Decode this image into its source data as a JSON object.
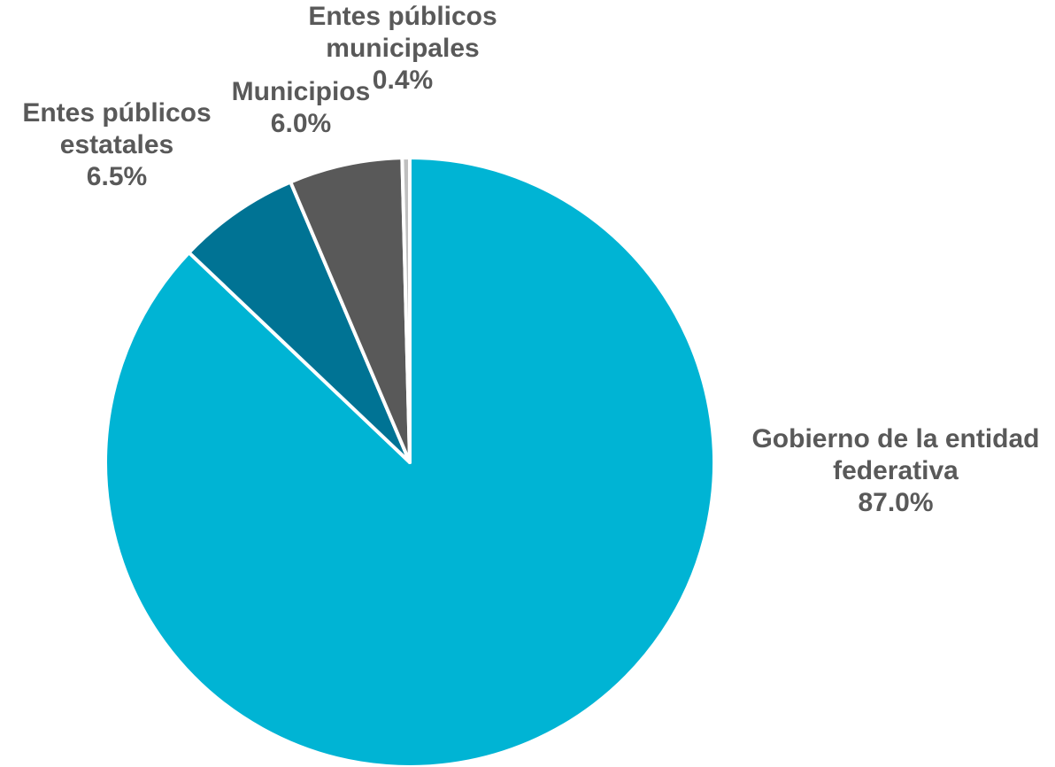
{
  "chart_data": {
    "type": "pie",
    "title": "",
    "legend": "none",
    "slices": [
      {
        "label_lines": [
          "Gobierno de la entidad",
          "federativa"
        ],
        "value": 87.0,
        "value_label": "87.0%",
        "color": "#00B4D4"
      },
      {
        "label_lines": [
          "Entes públicos",
          "estatales"
        ],
        "value": 6.5,
        "value_label": "6.5%",
        "color": "#007394"
      },
      {
        "label_lines": [
          "Municipios"
        ],
        "value": 6.0,
        "value_label": "6.0%",
        "color": "#595959"
      },
      {
        "label_lines": [
          "Entes públicos",
          "municipales"
        ],
        "value": 0.4,
        "value_label": "0.4%",
        "color": "#BFBFBF"
      }
    ]
  }
}
